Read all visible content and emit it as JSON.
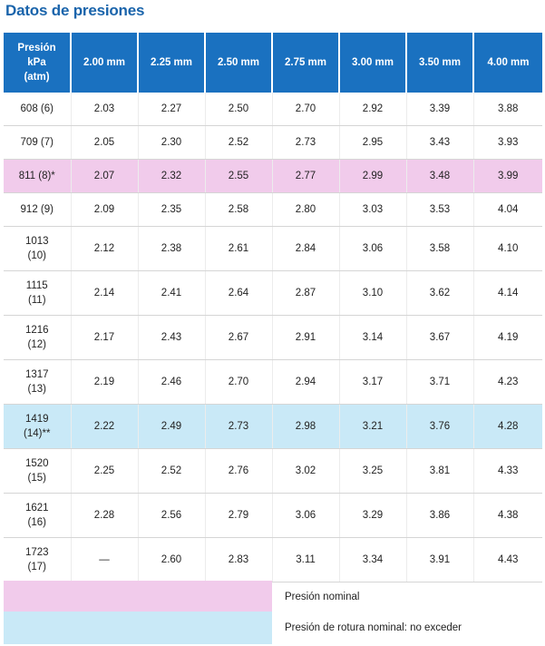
{
  "title": "Datos de presiones",
  "table": {
    "header_pressure_lines": [
      "Presión",
      "kPa",
      "(atm)"
    ],
    "columns": [
      "2.00 mm",
      "2.25 mm",
      "2.50 mm",
      "2.75 mm",
      "3.00 mm",
      "3.50 mm",
      "4.00 mm"
    ],
    "rows": [
      {
        "pressure": [
          "608 (6)"
        ],
        "values": [
          "2.03",
          "2.27",
          "2.50",
          "2.70",
          "2.92",
          "3.39",
          "3.88"
        ],
        "highlight": "none"
      },
      {
        "pressure": [
          "709 (7)"
        ],
        "values": [
          "2.05",
          "2.30",
          "2.52",
          "2.73",
          "2.95",
          "3.43",
          "3.93"
        ],
        "highlight": "none"
      },
      {
        "pressure": [
          "811 (8)*"
        ],
        "values": [
          "2.07",
          "2.32",
          "2.55",
          "2.77",
          "2.99",
          "3.48",
          "3.99"
        ],
        "highlight": "nominal"
      },
      {
        "pressure": [
          "912 (9)"
        ],
        "values": [
          "2.09",
          "2.35",
          "2.58",
          "2.80",
          "3.03",
          "3.53",
          "4.04"
        ],
        "highlight": "none"
      },
      {
        "pressure": [
          "1013",
          "(10)"
        ],
        "values": [
          "2.12",
          "2.38",
          "2.61",
          "2.84",
          "3.06",
          "3.58",
          "4.10"
        ],
        "highlight": "none"
      },
      {
        "pressure": [
          "1115",
          "(11)"
        ],
        "values": [
          "2.14",
          "2.41",
          "2.64",
          "2.87",
          "3.10",
          "3.62",
          "4.14"
        ],
        "highlight": "none"
      },
      {
        "pressure": [
          "1216",
          "(12)"
        ],
        "values": [
          "2.17",
          "2.43",
          "2.67",
          "2.91",
          "3.14",
          "3.67",
          "4.19"
        ],
        "highlight": "none"
      },
      {
        "pressure": [
          "1317",
          "(13)"
        ],
        "values": [
          "2.19",
          "2.46",
          "2.70",
          "2.94",
          "3.17",
          "3.71",
          "4.23"
        ],
        "highlight": "none"
      },
      {
        "pressure": [
          "1419",
          "(14)**"
        ],
        "values": [
          "2.22",
          "2.49",
          "2.73",
          "2.98",
          "3.21",
          "3.76",
          "4.28"
        ],
        "highlight": "rotura"
      },
      {
        "pressure": [
          "1520",
          "(15)"
        ],
        "values": [
          "2.25",
          "2.52",
          "2.76",
          "3.02",
          "3.25",
          "3.81",
          "4.33"
        ],
        "highlight": "none"
      },
      {
        "pressure": [
          "1621",
          "(16)"
        ],
        "values": [
          "2.28",
          "2.56",
          "2.79",
          "3.06",
          "3.29",
          "3.86",
          "4.38"
        ],
        "highlight": "none"
      },
      {
        "pressure": [
          "1723",
          "(17)"
        ],
        "values": [
          "—",
          "2.60",
          "2.83",
          "3.11",
          "3.34",
          "3.91",
          "4.43"
        ],
        "highlight": "none"
      }
    ]
  },
  "legend": [
    {
      "text": "Presión nominal",
      "color": "#f1cbeb"
    },
    {
      "text": "Presión de rotura nominal: no exceder",
      "color": "#c9e9f7"
    }
  ],
  "colors": {
    "title": "#1a64ab",
    "header_bg": "#1a71c0",
    "nominal": "#f1cbeb",
    "rotura": "#c9e9f7"
  }
}
